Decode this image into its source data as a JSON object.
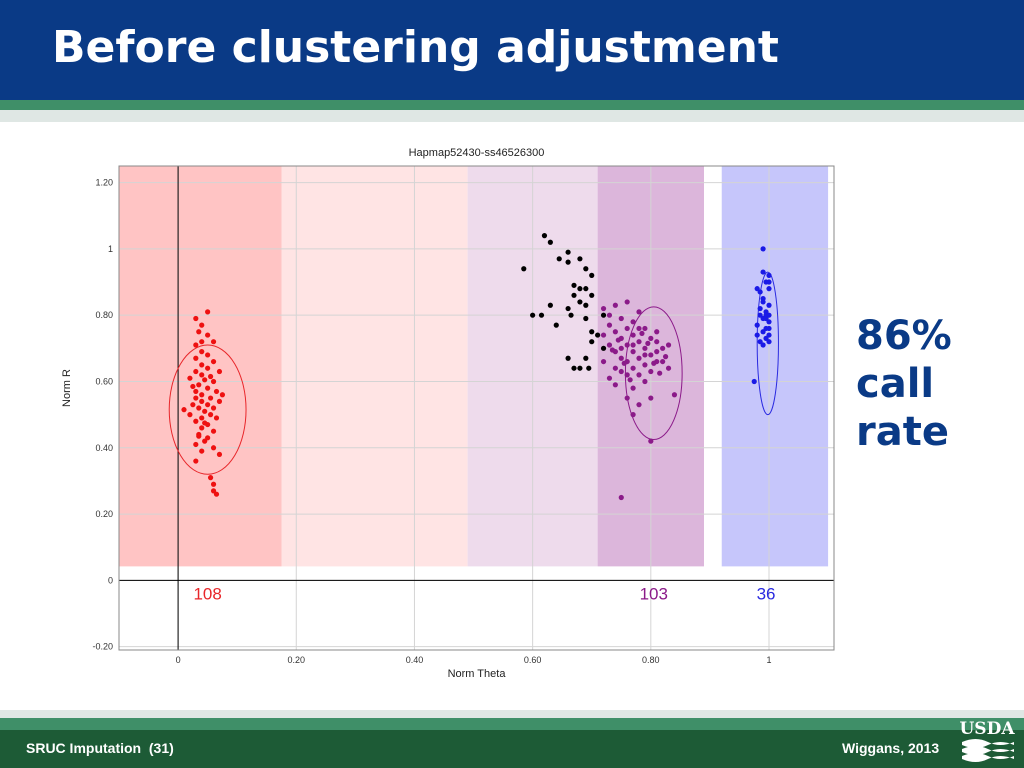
{
  "slide": {
    "title": "Before clustering adjustment",
    "callout_lines": [
      "86%",
      "call",
      "rate"
    ],
    "footer_left": "SRUC Imputation  (31)",
    "footer_right": "Wiggans, 2013",
    "logo_text": "USDA",
    "colors": {
      "header": "#0a3a86",
      "footer": "#1d5b36",
      "callout": "#0a3a86"
    }
  },
  "chart_data": {
    "type": "scatter",
    "title": "Hapmap52430-ss46526300",
    "xlabel": "Norm Theta",
    "ylabel": "Norm R",
    "xlim": [
      -0.1,
      1.11
    ],
    "ylim": [
      -0.21,
      1.25
    ],
    "xticks": [
      0,
      0.2,
      0.4,
      0.6,
      0.8,
      1
    ],
    "xtick_labels": [
      "0",
      "0.20",
      "0.40",
      "0.60",
      "0.80",
      "1"
    ],
    "yticks": [
      -0.2,
      0,
      0.2,
      0.4,
      0.6,
      0.8,
      1,
      1.2
    ],
    "ytick_labels": [
      "-0.20",
      "0",
      "0.20",
      "0.40",
      "0.60",
      "0.80",
      "1",
      "1.20"
    ],
    "regions": [
      {
        "x0": -0.1,
        "x1": 0.175,
        "color": "#ffc4c4"
      },
      {
        "x0": 0.175,
        "x1": 0.49,
        "color": "#ffe4e4"
      },
      {
        "x0": 0.49,
        "x1": 0.71,
        "color": "#eedbec"
      },
      {
        "x0": 0.71,
        "x1": 0.89,
        "color": "#dcb6db"
      },
      {
        "x0": 0.92,
        "x1": 1.1,
        "color": "#c6c6fb"
      }
    ],
    "counts": [
      {
        "label": "108",
        "x": 0.05,
        "color": "#e8262a"
      },
      {
        "label": "103",
        "x": 0.805,
        "color": "#8b1a89"
      },
      {
        "label": "36",
        "x": 0.995,
        "color": "#2a2ae0"
      }
    ],
    "ellipses": [
      {
        "cx": 0.05,
        "cy": 0.515,
        "rx": 0.065,
        "ry": 0.195,
        "color": "#e8262a"
      },
      {
        "cx": 0.805,
        "cy": 0.625,
        "rx": 0.048,
        "ry": 0.2,
        "color": "#8b1a89"
      },
      {
        "cx": 0.998,
        "cy": 0.715,
        "rx": 0.018,
        "ry": 0.215,
        "color": "#2a2ae0"
      }
    ],
    "series": [
      {
        "color": "#ee1111",
        "points": [
          [
            0.05,
            0.81
          ],
          [
            0.03,
            0.79
          ],
          [
            0.04,
            0.77
          ],
          [
            0.035,
            0.75
          ],
          [
            0.05,
            0.74
          ],
          [
            0.04,
            0.72
          ],
          [
            0.03,
            0.71
          ],
          [
            0.06,
            0.72
          ],
          [
            0.04,
            0.69
          ],
          [
            0.05,
            0.68
          ],
          [
            0.03,
            0.67
          ],
          [
            0.06,
            0.66
          ],
          [
            0.04,
            0.65
          ],
          [
            0.05,
            0.64
          ],
          [
            0.03,
            0.63
          ],
          [
            0.07,
            0.63
          ],
          [
            0.04,
            0.62
          ],
          [
            0.02,
            0.61
          ],
          [
            0.06,
            0.6
          ],
          [
            0.035,
            0.59
          ],
          [
            0.05,
            0.58
          ],
          [
            0.03,
            0.57
          ],
          [
            0.065,
            0.57
          ],
          [
            0.04,
            0.56
          ],
          [
            0.055,
            0.55
          ],
          [
            0.03,
            0.55
          ],
          [
            0.07,
            0.54
          ],
          [
            0.04,
            0.54
          ],
          [
            0.025,
            0.53
          ],
          [
            0.05,
            0.53
          ],
          [
            0.06,
            0.52
          ],
          [
            0.035,
            0.52
          ],
          [
            0.045,
            0.51
          ],
          [
            0.02,
            0.5
          ],
          [
            0.055,
            0.5
          ],
          [
            0.04,
            0.49
          ],
          [
            0.065,
            0.49
          ],
          [
            0.03,
            0.48
          ],
          [
            0.05,
            0.47
          ],
          [
            0.04,
            0.46
          ],
          [
            0.06,
            0.45
          ],
          [
            0.035,
            0.44
          ],
          [
            0.05,
            0.43
          ],
          [
            0.045,
            0.42
          ],
          [
            0.03,
            0.41
          ],
          [
            0.06,
            0.4
          ],
          [
            0.04,
            0.39
          ],
          [
            0.07,
            0.38
          ],
          [
            0.03,
            0.36
          ],
          [
            0.055,
            0.31
          ],
          [
            0.06,
            0.29
          ],
          [
            0.06,
            0.27
          ],
          [
            0.065,
            0.26
          ],
          [
            0.01,
            0.515
          ],
          [
            0.075,
            0.56
          ],
          [
            0.045,
            0.605
          ],
          [
            0.025,
            0.585
          ],
          [
            0.055,
            0.615
          ],
          [
            0.045,
            0.475
          ],
          [
            0.035,
            0.435
          ]
        ]
      },
      {
        "color": "#000000",
        "points": [
          [
            0.62,
            1.04
          ],
          [
            0.63,
            1.02
          ],
          [
            0.66,
            0.99
          ],
          [
            0.645,
            0.97
          ],
          [
            0.66,
            0.96
          ],
          [
            0.68,
            0.97
          ],
          [
            0.585,
            0.94
          ],
          [
            0.69,
            0.94
          ],
          [
            0.7,
            0.92
          ],
          [
            0.67,
            0.89
          ],
          [
            0.68,
            0.88
          ],
          [
            0.69,
            0.88
          ],
          [
            0.7,
            0.86
          ],
          [
            0.67,
            0.86
          ],
          [
            0.68,
            0.84
          ],
          [
            0.66,
            0.82
          ],
          [
            0.69,
            0.83
          ],
          [
            0.6,
            0.8
          ],
          [
            0.63,
            0.83
          ],
          [
            0.665,
            0.8
          ],
          [
            0.69,
            0.79
          ],
          [
            0.64,
            0.77
          ],
          [
            0.7,
            0.75
          ],
          [
            0.71,
            0.74
          ],
          [
            0.7,
            0.72
          ],
          [
            0.72,
            0.7
          ],
          [
            0.69,
            0.67
          ],
          [
            0.66,
            0.67
          ],
          [
            0.67,
            0.64
          ],
          [
            0.68,
            0.64
          ],
          [
            0.695,
            0.64
          ],
          [
            0.615,
            0.8
          ],
          [
            0.72,
            0.8
          ]
        ]
      },
      {
        "color": "#8b1a89",
        "points": [
          [
            0.74,
            0.83
          ],
          [
            0.76,
            0.84
          ],
          [
            0.72,
            0.82
          ],
          [
            0.78,
            0.81
          ],
          [
            0.73,
            0.8
          ],
          [
            0.75,
            0.79
          ],
          [
            0.77,
            0.78
          ],
          [
            0.73,
            0.77
          ],
          [
            0.76,
            0.76
          ],
          [
            0.79,
            0.76
          ],
          [
            0.74,
            0.75
          ],
          [
            0.81,
            0.75
          ],
          [
            0.77,
            0.74
          ],
          [
            0.72,
            0.74
          ],
          [
            0.75,
            0.73
          ],
          [
            0.8,
            0.73
          ],
          [
            0.78,
            0.72
          ],
          [
            0.76,
            0.71
          ],
          [
            0.73,
            0.71
          ],
          [
            0.79,
            0.7
          ],
          [
            0.82,
            0.7
          ],
          [
            0.74,
            0.69
          ],
          [
            0.77,
            0.69
          ],
          [
            0.8,
            0.68
          ],
          [
            0.75,
            0.67
          ],
          [
            0.78,
            0.67
          ],
          [
            0.72,
            0.66
          ],
          [
            0.76,
            0.66
          ],
          [
            0.81,
            0.66
          ],
          [
            0.79,
            0.65
          ],
          [
            0.74,
            0.64
          ],
          [
            0.77,
            0.64
          ],
          [
            0.83,
            0.64
          ],
          [
            0.75,
            0.63
          ],
          [
            0.8,
            0.63
          ],
          [
            0.78,
            0.62
          ],
          [
            0.76,
            0.62
          ],
          [
            0.73,
            0.61
          ],
          [
            0.79,
            0.6
          ],
          [
            0.74,
            0.59
          ],
          [
            0.77,
            0.58
          ],
          [
            0.8,
            0.55
          ],
          [
            0.76,
            0.55
          ],
          [
            0.84,
            0.56
          ],
          [
            0.78,
            0.53
          ],
          [
            0.77,
            0.5
          ],
          [
            0.81,
            0.69
          ],
          [
            0.795,
            0.715
          ],
          [
            0.745,
            0.725
          ],
          [
            0.785,
            0.745
          ],
          [
            0.755,
            0.655
          ],
          [
            0.805,
            0.655
          ],
          [
            0.815,
            0.625
          ],
          [
            0.765,
            0.605
          ],
          [
            0.735,
            0.695
          ],
          [
            0.825,
            0.675
          ],
          [
            0.8,
            0.42
          ],
          [
            0.75,
            0.25
          ],
          [
            0.77,
            0.71
          ],
          [
            0.79,
            0.68
          ],
          [
            0.75,
            0.7
          ],
          [
            0.81,
            0.72
          ],
          [
            0.83,
            0.71
          ],
          [
            0.82,
            0.66
          ],
          [
            0.78,
            0.76
          ]
        ]
      },
      {
        "color": "#1a1ae6",
        "points": [
          [
            0.99,
            1.0
          ],
          [
            0.99,
            0.93
          ],
          [
            1.0,
            0.92
          ],
          [
            0.995,
            0.9
          ],
          [
            1.0,
            0.88
          ],
          [
            0.985,
            0.87
          ],
          [
            0.98,
            0.88
          ],
          [
            0.99,
            0.85
          ],
          [
            1.0,
            0.83
          ],
          [
            0.985,
            0.82
          ],
          [
            0.995,
            0.81
          ],
          [
            1.0,
            0.8
          ],
          [
            0.99,
            0.79
          ],
          [
            1.0,
            0.78
          ],
          [
            0.98,
            0.77
          ],
          [
            0.995,
            0.76
          ],
          [
            0.99,
            0.75
          ],
          [
            1.0,
            0.74
          ],
          [
            0.98,
            0.74
          ],
          [
            0.995,
            0.73
          ],
          [
            0.985,
            0.72
          ],
          [
            1.0,
            0.72
          ],
          [
            0.99,
            0.71
          ],
          [
            0.995,
            0.8
          ],
          [
            0.985,
            0.8
          ],
          [
            1.0,
            0.76
          ],
          [
            0.975,
            0.6
          ],
          [
            0.99,
            0.84
          ],
          [
            1.0,
            0.9
          ],
          [
            0.995,
            0.79
          ]
        ]
      }
    ]
  }
}
